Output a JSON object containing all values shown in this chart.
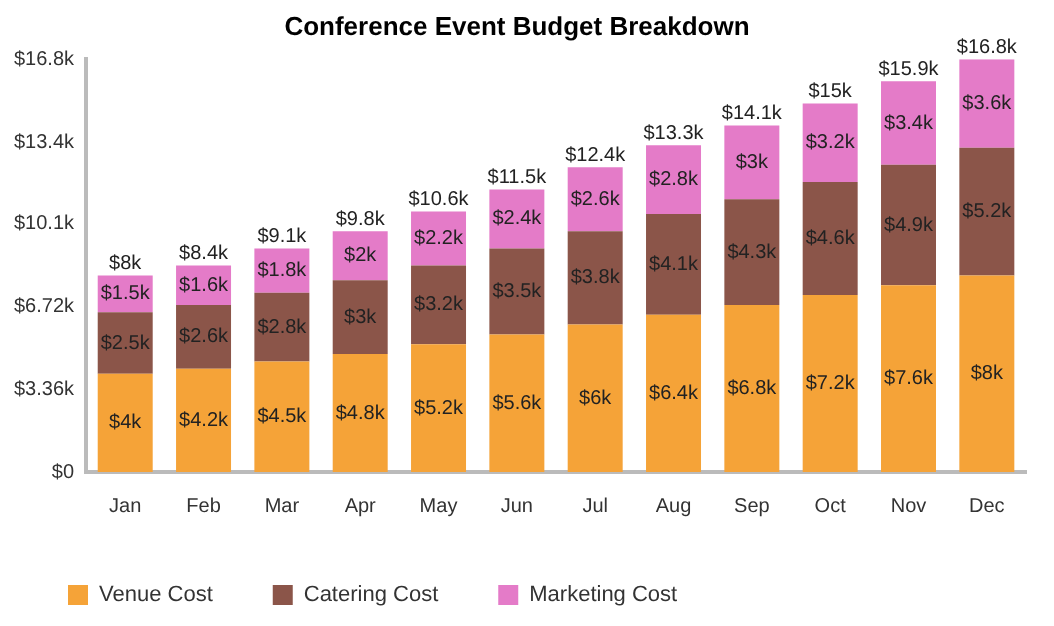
{
  "chart_data": {
    "type": "bar",
    "title": "Conference Event Budget Breakdown",
    "stacked": true,
    "categories": [
      "Jan",
      "Feb",
      "Mar",
      "Apr",
      "May",
      "Jun",
      "Jul",
      "Aug",
      "Sep",
      "Oct",
      "Nov",
      "Dec"
    ],
    "series": [
      {
        "name": "Venue Cost",
        "color": "#f5a338",
        "values": [
          4,
          4.2,
          4.5,
          4.8,
          5.2,
          5.6,
          6,
          6.4,
          6.8,
          7.2,
          7.6,
          8
        ],
        "value_labels": [
          "$4k",
          "$4.2k",
          "$4.5k",
          "$4.8k",
          "$5.2k",
          "$5.6k",
          "$6k",
          "$6.4k",
          "$6.8k",
          "$7.2k",
          "$7.6k",
          "$8k"
        ]
      },
      {
        "name": "Catering Cost",
        "color": "#8b5549",
        "values": [
          2.5,
          2.6,
          2.8,
          3,
          3.2,
          3.5,
          3.8,
          4.1,
          4.3,
          4.6,
          4.9,
          5.2
        ],
        "value_labels": [
          "$2.5k",
          "$2.6k",
          "$2.8k",
          "$3k",
          "$3.2k",
          "$3.5k",
          "$3.8k",
          "$4.1k",
          "$4.3k",
          "$4.6k",
          "$4.9k",
          "$5.2k"
        ]
      },
      {
        "name": "Marketing Cost",
        "color": "#e47bc8",
        "values": [
          1.5,
          1.6,
          1.8,
          2,
          2.2,
          2.4,
          2.6,
          2.8,
          3,
          3.2,
          3.4,
          3.6
        ],
        "value_labels": [
          "$1.5k",
          "$1.6k",
          "$1.8k",
          "$2k",
          "$2.2k",
          "$2.4k",
          "$2.6k",
          "$2.8k",
          "$3k",
          "$3.2k",
          "$3.4k",
          "$3.6k"
        ]
      }
    ],
    "totals": [
      "$8k",
      "$8.4k",
      "$9.1k",
      "$9.8k",
      "$10.6k",
      "$11.5k",
      "$12.4k",
      "$13.3k",
      "$14.1k",
      "$15k",
      "$15.9k",
      "$16.8k"
    ],
    "ylim": [
      0,
      16.8
    ],
    "yticks": [
      {
        "value": 0,
        "label": "$0"
      },
      {
        "value": 3.36,
        "label": "$3.36k"
      },
      {
        "value": 6.72,
        "label": "$6.72k"
      },
      {
        "value": 10.1,
        "label": "$10.1k"
      },
      {
        "value": 13.4,
        "label": "$13.4k"
      },
      {
        "value": 16.8,
        "label": "$16.8k"
      }
    ],
    "grid": false,
    "legend": "bottom left"
  }
}
